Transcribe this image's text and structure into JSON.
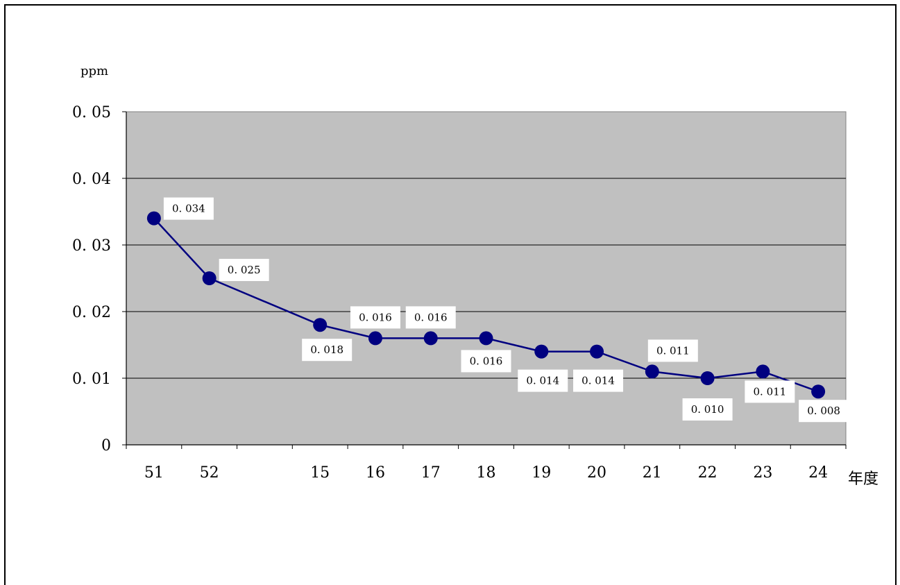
{
  "chart_data": {
    "type": "line",
    "title": "",
    "ylabel": "ppm",
    "xlabel": "年度",
    "ylim": [
      0,
      0.05
    ],
    "yticks": [
      "0",
      "0. 01",
      "0. 02",
      "0. 03",
      "0. 04",
      "0. 05"
    ],
    "grid": true,
    "categories": [
      "51",
      "52",
      "15",
      "16",
      "17",
      "18",
      "19",
      "20",
      "21",
      "22",
      "23",
      "24"
    ],
    "values": [
      0.034,
      0.025,
      0.018,
      0.016,
      0.016,
      0.016,
      0.014,
      0.014,
      0.011,
      0.01,
      0.011,
      0.008
    ],
    "data_labels": [
      "0. 034",
      "0. 025",
      "0. 018",
      "0. 016",
      "0. 016",
      "0. 016",
      "0. 014",
      "0. 014",
      "0. 011",
      "0. 010",
      "0. 011",
      "0. 008"
    ],
    "colors": {
      "plot_background": "#c0c0c0",
      "line": "#000080",
      "marker": "#000080",
      "label_box": "#ffffff"
    }
  }
}
